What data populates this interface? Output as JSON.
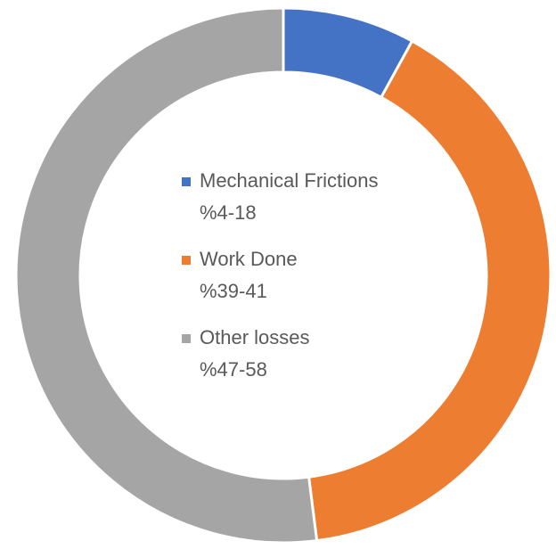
{
  "chart_data": {
    "type": "donut",
    "categories": [
      "Mechanical Frictions",
      "Work Done",
      "Other losses"
    ],
    "ranges": [
      "%4-18",
      "%39-41",
      "%47-58"
    ],
    "values": [
      8,
      40,
      52
    ],
    "colors": [
      "#4472c4",
      "#ed7d31",
      "#a5a5a5"
    ],
    "legend": "center"
  }
}
